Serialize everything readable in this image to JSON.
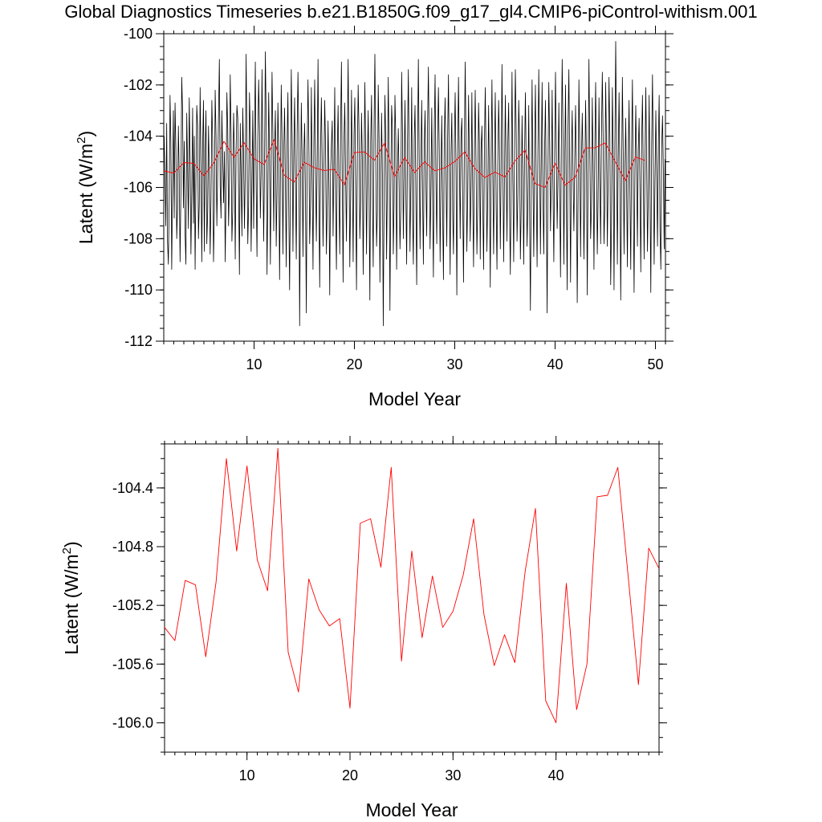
{
  "page_title": "Global Diagnostics Timeseries b.e21.B1850G.f09_g17_gl4.CMIP6-piControl-withism.001",
  "colors": {
    "monthly": "#000000",
    "annual": "#ff0000"
  },
  "chart_data": [
    {
      "type": "line",
      "xlabel": "Model Year",
      "ylabel": "Latent (W/m²)",
      "ylabel_base": "Latent (W/m",
      "ylabel_sup": "2",
      "ylabel_end": ")",
      "xlim": [
        1,
        51
      ],
      "ylim": [
        -112,
        -100
      ],
      "xticks": [
        10,
        20,
        30,
        40,
        50
      ],
      "xtick_labels": [
        "10",
        "20",
        "30",
        "40",
        "50"
      ],
      "yticks": [
        -112,
        -110,
        -108,
        -106,
        -104,
        -102,
        -100
      ],
      "ytick_labels": [
        "-112",
        "-110",
        "-108",
        "-106",
        "-104",
        "-102",
        "-100"
      ],
      "grid": false,
      "series": [
        {
          "color": "#000000",
          "x_start": 1.0417,
          "x_step": 0.08333,
          "values": [
            -104.0,
            -105.7,
            -107.5,
            -103.5,
            -108.1,
            -109.0,
            -106.5,
            -102.4,
            -104.2,
            -109.2,
            -106.0,
            -103.0,
            -107.2,
            -102.7,
            -104.5,
            -108.0,
            -106.8,
            -103.6,
            -105.5,
            -108.9,
            -106.2,
            -101.7,
            -103.0,
            -106.8,
            -104.2,
            -107.8,
            -109.0,
            -103.1,
            -105.2,
            -107.6,
            -102.5,
            -104.8,
            -108.6,
            -106.2,
            -102.9,
            -107.4,
            -104.0,
            -109.2,
            -105.6,
            -102.8,
            -103.6,
            -108.0,
            -106.6,
            -102.1,
            -105.1,
            -108.9,
            -104.4,
            -102.6,
            -108.5,
            -104.6,
            -103.0,
            -108.2,
            -107.0,
            -103.6,
            -105.4,
            -108.6,
            -106.5,
            -102.6,
            -104.2,
            -108.9,
            -106.9,
            -102.2,
            -104.0,
            -107.5,
            -105.3,
            -103.2,
            -101.0,
            -106.0,
            -107.2,
            -103.0,
            -104.8,
            -106.6,
            -104.6,
            -108.9,
            -106.1,
            -102.3,
            -103.7,
            -107.5,
            -105.8,
            -101.6,
            -103.9,
            -108.1,
            -106.9,
            -103.1,
            -104.6,
            -108.8,
            -104.6,
            -102.8,
            -103.3,
            -106.1,
            -109.4,
            -103.5,
            -105.6,
            -107.9,
            -102.9,
            -104.8,
            -107.6,
            -105.3,
            -100.8,
            -104.3,
            -108.2,
            -106.7,
            -102.3,
            -103.9,
            -108.5,
            -105.8,
            -103.0,
            -107.6,
            -104.2,
            -101.1,
            -105.9,
            -108.7,
            -104.1,
            -101.8,
            -103.7,
            -107.2,
            -105.4,
            -101.4,
            -104.9,
            -108.1,
            -105.1,
            -100.7,
            -103.4,
            -109.4,
            -106.3,
            -102.3,
            -104.7,
            -109.0,
            -105.2,
            -101.5,
            -103.8,
            -107.7,
            -104.5,
            -103.0,
            -108.3,
            -106.2,
            -102.7,
            -104.5,
            -109.6,
            -105.8,
            -102.0,
            -104.2,
            -108.6,
            -104.6,
            -102.9,
            -105.8,
            -109.1,
            -104.3,
            -102.3,
            -106.8,
            -110.0,
            -105.9,
            -101.4,
            -103.9,
            -108.5,
            -104.6,
            -102.5,
            -105.9,
            -108.8,
            -103.9,
            -101.5,
            -104.1,
            -111.4,
            -106.3,
            -102.7,
            -104.9,
            -108.7,
            -104.7,
            -103.5,
            -106.4,
            -110.9,
            -104.7,
            -101.8,
            -104.1,
            -108.2,
            -106.7,
            -102.1,
            -105.6,
            -109.2,
            -104.3,
            -101.8,
            -105.4,
            -108.1,
            -104.8,
            -101.0,
            -106.0,
            -109.9,
            -104.5,
            -102.5,
            -105.1,
            -108.3,
            -105.5,
            -102.6,
            -104.4,
            -108.6,
            -106.7,
            -103.4,
            -105.9,
            -110.2,
            -105.4,
            -104.3,
            -103.4,
            -107.9,
            -105.2,
            -102.1,
            -106.5,
            -109.2,
            -104.6,
            -102.8,
            -106.1,
            -108.6,
            -103.7,
            -101.1,
            -105.8,
            -109.7,
            -104.2,
            -102.7,
            -105.6,
            -108.1,
            -104.4,
            -101.0,
            -104.6,
            -109.1,
            -106.3,
            -102.2,
            -105.2,
            -108.9,
            -104.0,
            -102.5,
            -105.9,
            -110.0,
            -104.9,
            -102.0,
            -103.8,
            -108.0,
            -106.5,
            -103.1,
            -104.9,
            -109.4,
            -105.5,
            -101.9,
            -104.6,
            -108.6,
            -105.2,
            -103.0,
            -106.1,
            -110.4,
            -104.2,
            -102.4,
            -106.3,
            -109.1,
            -103.6,
            -100.8,
            -104.6,
            -108.3,
            -106.9,
            -102.0,
            -104.1,
            -109.7,
            -106.2,
            -103.1,
            -105.5,
            -111.4,
            -106.4,
            -102.4,
            -104.2,
            -108.8,
            -105.7,
            -101.7,
            -104.7,
            -110.8,
            -106.1,
            -102.8,
            -103.7,
            -108.6,
            -106.5,
            -102.4,
            -104.1,
            -109.2,
            -105.5,
            -103.7,
            -105.8,
            -108.4,
            -106.8,
            -101.5,
            -103.9,
            -108.0,
            -105.4,
            -102.6,
            -106.1,
            -109.0,
            -104.2,
            -101.4,
            -104.8,
            -108.5,
            -105.8,
            -102.1,
            -106.9,
            -109.0,
            -104.1,
            -102.8,
            -106.3,
            -109.8,
            -104.6,
            -101.0,
            -104.8,
            -108.4,
            -105.1,
            -102.6,
            -106.2,
            -109.0,
            -104.4,
            -103.0,
            -105.8,
            -107.9,
            -103.6,
            -101.3,
            -104.5,
            -108.4,
            -106.1,
            -102.9,
            -106.4,
            -109.5,
            -103.8,
            -101.6,
            -105.7,
            -108.2,
            -104.2,
            -102.1,
            -104.6,
            -108.9,
            -105.6,
            -103.2,
            -106.8,
            -109.6,
            -104.0,
            -102.5,
            -105.4,
            -108.3,
            -104.1,
            -101.6,
            -105.4,
            -109.4,
            -104.7,
            -103.1,
            -106.9,
            -108.6,
            -104.3,
            -102.3,
            -105.2,
            -110.2,
            -104.8,
            -101.7,
            -104.9,
            -108.0,
            -104.0,
            -103.3,
            -106.3,
            -109.7,
            -104.5,
            -101.1,
            -104.3,
            -108.5,
            -106.3,
            -102.4,
            -104.8,
            -108.1,
            -105.9,
            -102.3,
            -106.4,
            -109.1,
            -104.6,
            -102.2,
            -105.1,
            -108.6,
            -106.7,
            -102.7,
            -104.3,
            -108.8,
            -104.5,
            -103.6,
            -106.5,
            -109.2,
            -104.4,
            -102.1,
            -104.9,
            -108.5,
            -106.2,
            -102.8,
            -105.7,
            -109.9,
            -105.0,
            -101.8,
            -105.5,
            -108.6,
            -104.8,
            -102.3,
            -106.7,
            -109.2,
            -105.1,
            -102.6,
            -104.4,
            -108.4,
            -105.2,
            -101.2,
            -104.9,
            -108.9,
            -105.6,
            -102.4,
            -105.3,
            -108.1,
            -104.2,
            -102.7,
            -106.7,
            -109.4,
            -105.6,
            -101.5,
            -105.8,
            -108.9,
            -104.5,
            -101.4,
            -103.8,
            -108.1,
            -106.3,
            -102.6,
            -104.1,
            -108.8,
            -106.8,
            -103.2,
            -105.6,
            -109.0,
            -104.8,
            -102.3,
            -105.1,
            -108.3,
            -106.5,
            -102.8,
            -106.9,
            -110.8,
            -105.8,
            -101.8,
            -105.7,
            -108.7,
            -104.4,
            -102.0,
            -106.1,
            -109.1,
            -104.6,
            -101.4,
            -104.7,
            -108.6,
            -105.0,
            -101.9,
            -106.3,
            -108.6,
            -104.5,
            -102.6,
            -106.4,
            -110.9,
            -105.3,
            -101.9,
            -104.2,
            -107.7,
            -105.8,
            -102.2,
            -106.1,
            -108.9,
            -104.7,
            -101.5,
            -104.6,
            -107.6,
            -105.6,
            -102.7,
            -106.1,
            -109.5,
            -104.4,
            -101.0,
            -104.0,
            -109.0,
            -105.1,
            -102.0,
            -106.4,
            -110.0,
            -103.6,
            -101.4,
            -105.2,
            -109.7,
            -104.8,
            -103.0,
            -105.7,
            -107.7,
            -104.9,
            -102.8,
            -105.4,
            -110.5,
            -106.5,
            -101.8,
            -104.4,
            -108.7,
            -105.0,
            -103.1,
            -105.0,
            -108.8,
            -106.0,
            -102.6,
            -104.8,
            -110.2,
            -105.4,
            -101.0,
            -104.4,
            -108.0,
            -106.8,
            -102.5,
            -105.1,
            -109.2,
            -104.6,
            -101.9,
            -104.9,
            -108.6,
            -106.4,
            -102.5,
            -105.7,
            -108.2,
            -103.9,
            -101.5,
            -104.1,
            -108.2,
            -106.7,
            -101.9,
            -104.3,
            -108.3,
            -105.6,
            -101.7,
            -104.0,
            -109.8,
            -107.5,
            -102.1,
            -104.5,
            -110.0,
            -104.5,
            -100.3,
            -104.1,
            -109.0,
            -104.9,
            -102.3,
            -105.3,
            -110.4,
            -106.0,
            -101.7,
            -104.6,
            -108.6,
            -105.4,
            -103.3,
            -105.9,
            -109.1,
            -104.8,
            -102.6,
            -106.2,
            -109.2,
            -104.5,
            -101.8,
            -106.0,
            -110.1,
            -105.3,
            -102.8,
            -105.1,
            -108.3,
            -104.5,
            -103.3,
            -106.0,
            -109.3,
            -104.3,
            -102.4,
            -105.4,
            -108.8,
            -105.1,
            -102.1,
            -104.9,
            -108.5,
            -106.3,
            -102.4,
            -106.0,
            -110.1,
            -104.3,
            -101.6,
            -105.0,
            -109.0,
            -105.7,
            -103.0,
            -105.4,
            -108.3,
            -104.3,
            -102.4,
            -107.7,
            -109.2,
            -104.4,
            -103.2,
            -105.3,
            -108.4,
            -104.9
          ]
        },
        {
          "color": "#ff0000",
          "x_start": 1,
          "x_step": 1,
          "values": [
            -105.35,
            -105.44,
            -105.03,
            -105.06,
            -105.55,
            -105.04,
            -104.2,
            -104.83,
            -104.25,
            -104.89,
            -105.1,
            -104.13,
            -105.52,
            -105.79,
            -105.02,
            -105.23,
            -105.34,
            -105.29,
            -105.9,
            -104.64,
            -104.61,
            -104.94,
            -104.26,
            -105.58,
            -104.83,
            -105.42,
            -105.0,
            -105.35,
            -105.24,
            -104.99,
            -104.61,
            -105.26,
            -105.61,
            -105.4,
            -105.59,
            -104.97,
            -104.54,
            -105.85,
            -106.0,
            -105.05,
            -105.91,
            -105.6,
            -104.46,
            -104.45,
            -104.26,
            -105.0,
            -105.74,
            -104.81,
            -104.95
          ]
        }
      ]
    },
    {
      "type": "line",
      "xlabel": "Model Year",
      "ylabel": "Latent (W/m²)",
      "ylabel_base": "Latent (W/m",
      "ylabel_sup": "2",
      "ylabel_end": ")",
      "xlim": [
        2,
        50
      ],
      "ylim": [
        -106.2,
        -104.1
      ],
      "xticks": [
        10,
        20,
        30,
        40
      ],
      "xtick_labels": [
        "10",
        "20",
        "30",
        "40"
      ],
      "yticks": [
        -106.0,
        -105.6,
        -105.2,
        -104.8,
        -104.4
      ],
      "ytick_labels": [
        "-106.0",
        "-105.6",
        "-105.2",
        "-104.8",
        "-104.4"
      ],
      "grid": false,
      "series": [
        {
          "color": "#ff0000",
          "x_start": 2,
          "x_step": 1,
          "values": [
            -105.35,
            -105.44,
            -105.03,
            -105.06,
            -105.55,
            -105.04,
            -104.2,
            -104.83,
            -104.25,
            -104.89,
            -105.1,
            -104.13,
            -105.52,
            -105.79,
            -105.02,
            -105.23,
            -105.34,
            -105.29,
            -105.9,
            -104.64,
            -104.61,
            -104.94,
            -104.26,
            -105.58,
            -104.83,
            -105.42,
            -105.0,
            -105.35,
            -105.24,
            -104.99,
            -104.61,
            -105.26,
            -105.61,
            -105.4,
            -105.59,
            -104.97,
            -104.54,
            -105.85,
            -106.0,
            -105.05,
            -105.91,
            -105.6,
            -104.46,
            -104.45,
            -104.26,
            -105.0,
            -105.74,
            -104.81,
            -104.95
          ]
        }
      ]
    }
  ]
}
